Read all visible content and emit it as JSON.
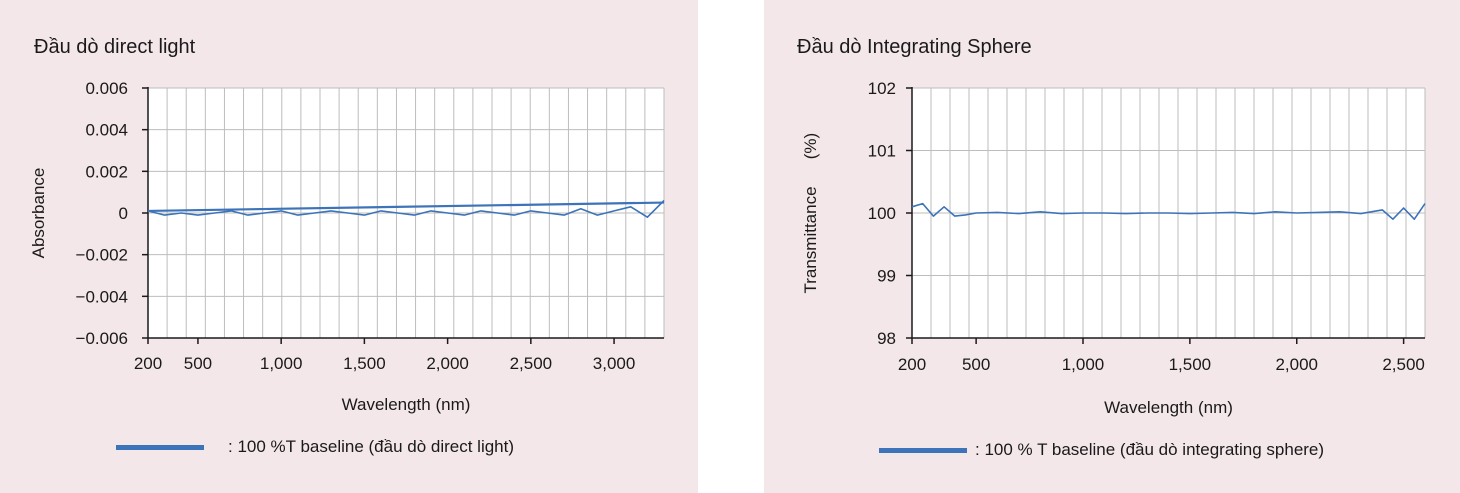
{
  "chart_data": [
    {
      "type": "line",
      "title": "Đầu dò direct light",
      "xlabel": "Wavelength (nm)",
      "ylabel": "Absorbance",
      "xlim": [
        200,
        3300
      ],
      "ylim": [
        -0.006,
        0.006
      ],
      "xticks": [
        200,
        500,
        1000,
        1500,
        2000,
        2500,
        3000
      ],
      "xtick_labels": [
        "200",
        "500",
        "1,000",
        "1,500",
        "2,000",
        "2,500",
        "3,000"
      ],
      "yticks": [
        0.006,
        0.004,
        0.002,
        0,
        -0.002,
        -0.004,
        -0.006
      ],
      "ytick_labels": [
        "0.006",
        "0.004",
        "0.002",
        "0",
        "−0.002",
        "−0.004",
        "−0.006"
      ],
      "grid": true,
      "legend_position": "bottom",
      "series": [
        {
          "name": ": 100 %T  baseline (đầu dò direct light)",
          "color": "#3c73b9",
          "x": [
            200,
            300,
            400,
            500,
            600,
            700,
            800,
            900,
            1000,
            1100,
            1200,
            1300,
            1400,
            1500,
            1600,
            1700,
            1800,
            1900,
            2000,
            2100,
            2200,
            2300,
            2400,
            2500,
            2600,
            2700,
            2800,
            2900,
            3000,
            3100,
            3200,
            3300
          ],
          "values": [
            0.0001,
            -0.0001,
            0.0,
            -0.0001,
            0.0,
            0.0001,
            -0.0001,
            0.0,
            0.0001,
            -0.0001,
            0.0,
            0.0001,
            0.0,
            -0.0001,
            0.0001,
            0.0,
            -0.0001,
            0.0001,
            0.0,
            -0.0001,
            0.0001,
            0.0,
            -0.0001,
            0.0001,
            0.0,
            -0.0001,
            0.0002,
            -0.0001,
            0.0001,
            0.0003,
            -0.0002,
            0.0006
          ]
        }
      ]
    },
    {
      "type": "line",
      "title": "Đầu dò Integrating Sphere",
      "xlabel": "Wavelength (nm)",
      "ylabel": "Transmittance",
      "yunit": "(%)",
      "xlim": [
        200,
        2600
      ],
      "ylim": [
        98,
        102
      ],
      "xticks": [
        200,
        500,
        1000,
        1500,
        2000,
        2500
      ],
      "xtick_labels": [
        "200",
        "500",
        "1,000",
        "1,500",
        "2,000",
        "2,500"
      ],
      "yticks": [
        102,
        101,
        100,
        99,
        98
      ],
      "ytick_labels": [
        "102",
        "101",
        "100",
        "99",
        "98"
      ],
      "grid": true,
      "legend_position": "bottom",
      "series": [
        {
          "name": ": 100 % T baseline (đầu dò integrating sphere)",
          "color": "#3c73b9",
          "x": [
            200,
            250,
            300,
            350,
            400,
            450,
            500,
            600,
            700,
            800,
            900,
            1000,
            1100,
            1200,
            1300,
            1400,
            1500,
            1600,
            1700,
            1800,
            1900,
            2000,
            2100,
            2200,
            2300,
            2400,
            2450,
            2500,
            2550,
            2600
          ],
          "values": [
            100.1,
            100.15,
            99.95,
            100.1,
            99.95,
            99.97,
            100.0,
            100.01,
            99.99,
            100.02,
            99.99,
            100.0,
            100.0,
            99.99,
            100.0,
            100.0,
            99.99,
            100.0,
            100.01,
            99.99,
            100.02,
            100.0,
            100.01,
            100.02,
            99.99,
            100.05,
            99.9,
            100.08,
            99.9,
            100.15
          ]
        }
      ]
    }
  ]
}
